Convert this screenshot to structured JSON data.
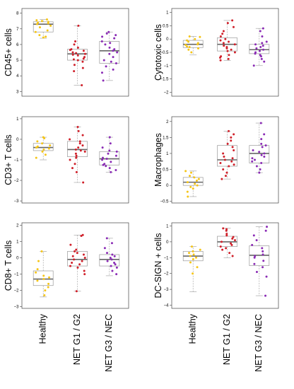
{
  "colors": {
    "healthy": "#F5C518",
    "net_g1g2": "#D0202A",
    "net_g3nec": "#8A2BB5"
  },
  "categories": [
    "Healthy",
    "NET G1 / G2",
    "NET G3 / NEC"
  ],
  "chart_data": [
    {
      "type": "box",
      "ylabel": "CD45+ cells",
      "ylim": [
        2.7,
        8.3
      ],
      "yticks": [
        3,
        4,
        5,
        6,
        7,
        8
      ],
      "categories": [
        "Healthy",
        "NET G1 / G2",
        "NET G3 / NEC"
      ],
      "groups": [
        {
          "name": "Healthy",
          "min": 6.4,
          "q1": 6.8,
          "median": 7.3,
          "q3": 7.45,
          "max": 7.6,
          "points": [
            7.6,
            7.55,
            7.5,
            7.45,
            7.4,
            7.35,
            7.3,
            7.2,
            7.1,
            6.9,
            6.8,
            6.6,
            6.5,
            6.45
          ]
        },
        {
          "name": "NET G1 / G2",
          "min": 3.4,
          "q1": 5.0,
          "median": 5.4,
          "q3": 5.7,
          "max": 7.2,
          "points": [
            7.2,
            6.2,
            6.0,
            5.8,
            5.7,
            5.65,
            5.6,
            5.5,
            5.45,
            5.4,
            5.35,
            5.3,
            5.2,
            5.1,
            5.05,
            5.0,
            4.9,
            4.7,
            4.5,
            4.3,
            3.4
          ]
        },
        {
          "name": "NET G3 / NEC",
          "min": 3.7,
          "q1": 4.8,
          "median": 5.6,
          "q3": 6.2,
          "max": 6.8,
          "points": [
            6.8,
            6.7,
            6.6,
            6.5,
            6.4,
            6.2,
            6.1,
            6.0,
            5.8,
            5.7,
            5.6,
            5.5,
            5.4,
            5.2,
            5.0,
            4.9,
            4.8,
            4.6,
            4.4,
            4.2,
            3.7
          ]
        }
      ]
    },
    {
      "type": "box",
      "ylabel": "Cytotoxic cells",
      "ylim": [
        -2.15,
        1.15
      ],
      "yticks": [
        -2.0,
        -1.5,
        -1.0,
        -0.5,
        0.0,
        0.5,
        1.0
      ],
      "categories": [
        "Healthy",
        "NET G1 / G2",
        "NET G3 / NEC"
      ],
      "groups": [
        {
          "name": "Healthy",
          "min": -0.6,
          "q1": -0.32,
          "median": -0.2,
          "q3": -0.05,
          "max": 0.1,
          "points": [
            0.1,
            0.08,
            0.0,
            -0.05,
            -0.1,
            -0.15,
            -0.2,
            -0.22,
            -0.28,
            -0.3,
            -0.35,
            -0.4,
            -0.5
          ]
        },
        {
          "name": "NET G1 / G2",
          "min": -0.8,
          "q1": -0.45,
          "median": -0.2,
          "q3": 0.05,
          "max": 0.7,
          "points": [
            0.7,
            0.6,
            0.45,
            0.3,
            0.2,
            0.1,
            0.0,
            -0.05,
            -0.1,
            -0.15,
            -0.2,
            -0.25,
            -0.3,
            -0.35,
            -0.4,
            -0.45,
            -0.5,
            -0.6,
            -0.65,
            -0.7,
            -0.75,
            -0.8
          ]
        },
        {
          "name": "NET G3 / NEC",
          "min": -1.0,
          "q1": -0.55,
          "median": -0.4,
          "q3": -0.2,
          "max": 0.4,
          "points": [
            0.4,
            0.3,
            0.1,
            -0.1,
            -0.15,
            -0.2,
            -0.25,
            -0.3,
            -0.35,
            -0.4,
            -0.45,
            -0.5,
            -0.55,
            -0.6,
            -0.65,
            -0.75,
            -0.85,
            -1.0
          ]
        }
      ]
    },
    {
      "type": "box",
      "ylabel": "CD3+ T cells",
      "ylim": [
        -3.1,
        1.1
      ],
      "yticks": [
        -3,
        -2,
        -1,
        0,
        1
      ],
      "categories": [
        "Healthy",
        "NET G1 / G2",
        "NET G3 / NEC"
      ],
      "groups": [
        {
          "name": "Healthy",
          "min": -1.0,
          "q1": -0.55,
          "median": -0.4,
          "q3": -0.2,
          "max": 0.1,
          "points": [
            0.1,
            0.05,
            -0.1,
            -0.2,
            -0.3,
            -0.35,
            -0.4,
            -0.45,
            -0.5,
            -0.6,
            -0.75,
            -0.9
          ]
        },
        {
          "name": "NET G1 / G2",
          "min": -2.1,
          "q1": -0.85,
          "median": -0.5,
          "q3": -0.1,
          "max": 0.6,
          "points": [
            0.6,
            0.4,
            0.2,
            0.0,
            -0.1,
            -0.2,
            -0.3,
            -0.4,
            -0.5,
            -0.55,
            -0.6,
            -0.7,
            -0.8,
            -0.9,
            -1.0,
            -1.2,
            -1.4,
            -1.6,
            -2.1
          ]
        },
        {
          "name": "NET G3 / NEC",
          "min": -1.6,
          "q1": -1.25,
          "median": -0.95,
          "q3": -0.6,
          "max": 0.1,
          "points": [
            0.1,
            -0.2,
            -0.4,
            -0.55,
            -0.6,
            -0.7,
            -0.8,
            -0.9,
            -0.95,
            -1.0,
            -1.1,
            -1.2,
            -1.25,
            -1.3,
            -1.4,
            -1.5,
            -1.6
          ]
        }
      ]
    },
    {
      "type": "box",
      "ylabel": "Macrophages",
      "ylim": [
        -0.55,
        2.15
      ],
      "yticks": [
        -0.5,
        0.0,
        0.5,
        1.0,
        1.5,
        2.0
      ],
      "categories": [
        "Healthy",
        "NET G1 / G2",
        "NET G3 / NEC"
      ],
      "groups": [
        {
          "name": "Healthy",
          "min": -0.35,
          "q1": 0.0,
          "median": 0.1,
          "q3": 0.25,
          "max": 0.45,
          "points": [
            0.45,
            0.4,
            0.3,
            0.25,
            0.2,
            0.15,
            0.1,
            0.05,
            0.0,
            -0.05,
            -0.1,
            -0.2,
            -0.35
          ]
        },
        {
          "name": "NET G1 / G2",
          "min": 0.2,
          "q1": 0.6,
          "median": 0.8,
          "q3": 1.25,
          "max": 1.7,
          "points": [
            1.7,
            1.6,
            1.5,
            1.4,
            1.3,
            1.2,
            1.1,
            1.0,
            0.9,
            0.85,
            0.8,
            0.75,
            0.7,
            0.65,
            0.6,
            0.5,
            0.4,
            0.3,
            0.2
          ]
        },
        {
          "name": "NET G3 / NEC",
          "min": 0.4,
          "q1": 0.7,
          "median": 1.0,
          "q3": 1.25,
          "max": 1.95,
          "points": [
            1.95,
            1.6,
            1.45,
            1.3,
            1.25,
            1.2,
            1.1,
            1.05,
            1.0,
            0.95,
            0.9,
            0.85,
            0.8,
            0.75,
            0.7,
            0.6,
            0.5,
            0.4
          ]
        }
      ]
    },
    {
      "type": "box",
      "ylabel": "CD8+ T cells",
      "ylim": [
        -3.1,
        2.15
      ],
      "yticks": [
        -3,
        -2,
        -1,
        0,
        1,
        2
      ],
      "categories": [
        "Healthy",
        "NET G1 / G2",
        "NET G3 / NEC"
      ],
      "groups": [
        {
          "name": "Healthy",
          "min": -2.4,
          "q1": -1.7,
          "median": -1.3,
          "q3": -0.8,
          "max": 0.4,
          "points": [
            0.4,
            -0.2,
            -0.7,
            -0.9,
            -1.1,
            -1.2,
            -1.3,
            -1.4,
            -1.6,
            -1.8,
            -2.0,
            -2.3
          ]
        },
        {
          "name": "NET G1 / G2",
          "min": -2.05,
          "q1": -0.5,
          "median": -0.1,
          "q3": 0.4,
          "max": 1.4,
          "points": [
            1.4,
            1.35,
            0.8,
            0.5,
            0.4,
            0.3,
            0.2,
            0.1,
            0.0,
            -0.1,
            -0.2,
            -0.3,
            -0.4,
            -0.5,
            -0.6,
            -0.8,
            -1.0,
            -2.05
          ]
        },
        {
          "name": "NET G3 / NEC",
          "min": -1.1,
          "q1": -0.5,
          "median": -0.1,
          "q3": 0.2,
          "max": 1.2,
          "points": [
            1.2,
            0.9,
            0.6,
            0.3,
            0.2,
            0.1,
            0.0,
            -0.1,
            -0.2,
            -0.3,
            -0.4,
            -0.5,
            -0.6,
            -0.8,
            -1.0
          ]
        }
      ]
    },
    {
      "type": "box",
      "ylabel": "DC-SIGN + cells",
      "ylim": [
        -4.2,
        1.2
      ],
      "yticks": [
        -4,
        -3,
        -2,
        -1,
        0,
        1
      ],
      "categories": [
        "Healthy",
        "NET G1 / G2",
        "NET G3 / NEC"
      ],
      "groups": [
        {
          "name": "Healthy",
          "min": -3.15,
          "q1": -1.2,
          "median": -0.9,
          "q3": -0.6,
          "max": -0.3,
          "points": [
            -0.3,
            -0.5,
            -0.6,
            -0.7,
            -0.8,
            -0.9,
            -1.0,
            -1.1,
            -1.3,
            -1.6,
            -2.0
          ]
        },
        {
          "name": "NET G1 / G2",
          "min": -1.0,
          "q1": -0.3,
          "median": 0.0,
          "q3": 0.35,
          "max": 0.85,
          "points": [
            0.85,
            0.8,
            0.7,
            0.5,
            0.4,
            0.3,
            0.2,
            0.1,
            0.0,
            -0.1,
            -0.2,
            -0.3,
            -0.4,
            -0.5,
            -0.7,
            -0.9
          ]
        },
        {
          "name": "NET G3 / NEC",
          "min": -3.4,
          "q1": -1.5,
          "median": -0.85,
          "q3": -0.25,
          "max": 0.95,
          "points": [
            0.95,
            0.7,
            0.4,
            0.1,
            -0.2,
            -0.4,
            -0.6,
            -0.8,
            -0.9,
            -1.0,
            -1.2,
            -1.4,
            -1.6,
            -1.9,
            -2.2,
            -3.4
          ]
        }
      ]
    }
  ]
}
